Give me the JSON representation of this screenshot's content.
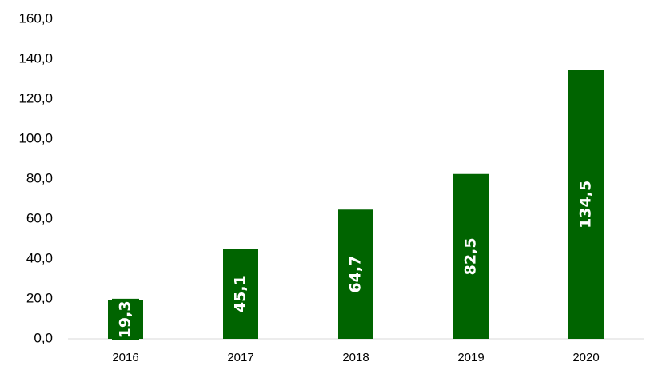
{
  "chart_data": {
    "type": "bar",
    "categories": [
      "2016",
      "2017",
      "2018",
      "2019",
      "2020"
    ],
    "values": [
      19.3,
      45.1,
      64.7,
      82.5,
      134.5
    ],
    "value_labels": [
      "19,3",
      "45,1",
      "64,7",
      "82,5",
      "134,5"
    ],
    "color": "#006400",
    "ylim": [
      0,
      160
    ],
    "yticks": [
      {
        "value": 0,
        "label": "0,0"
      },
      {
        "value": 20,
        "label": "20,0"
      },
      {
        "value": 40,
        "label": "40,0"
      },
      {
        "value": 60,
        "label": "60,0"
      },
      {
        "value": 80,
        "label": "80,0"
      },
      {
        "value": 100,
        "label": "100,0"
      },
      {
        "value": 120,
        "label": "120,0"
      },
      {
        "value": 140,
        "label": "140,0"
      },
      {
        "value": 160,
        "label": "160,0"
      }
    ],
    "grid": false
  }
}
